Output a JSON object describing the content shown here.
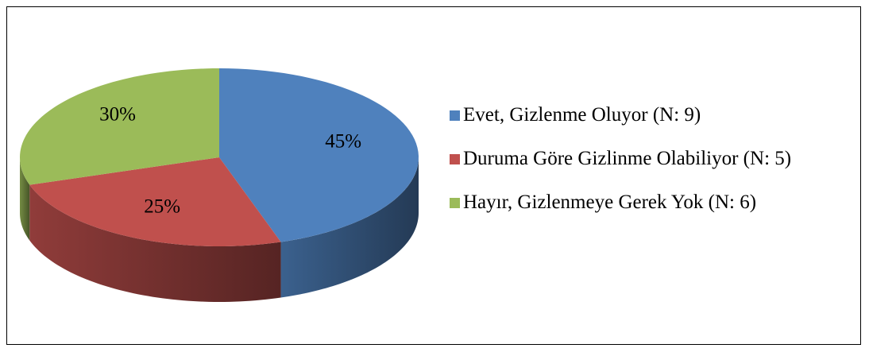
{
  "chart_data": {
    "type": "pie",
    "categories": [
      "Evet, Gizlenme Oluyor (N: 9)",
      "Duruma Göre Gizlinme Olabiliyor (N: 5)",
      "Hayır, Gizlenmeye Gerek Yok (N: 6)"
    ],
    "values": [
      45,
      25,
      30
    ],
    "value_labels": [
      "45%",
      "25%",
      "30%"
    ],
    "colors": [
      "#4f81bd",
      "#c0504d",
      "#9bbb59"
    ],
    "legend": "right"
  }
}
